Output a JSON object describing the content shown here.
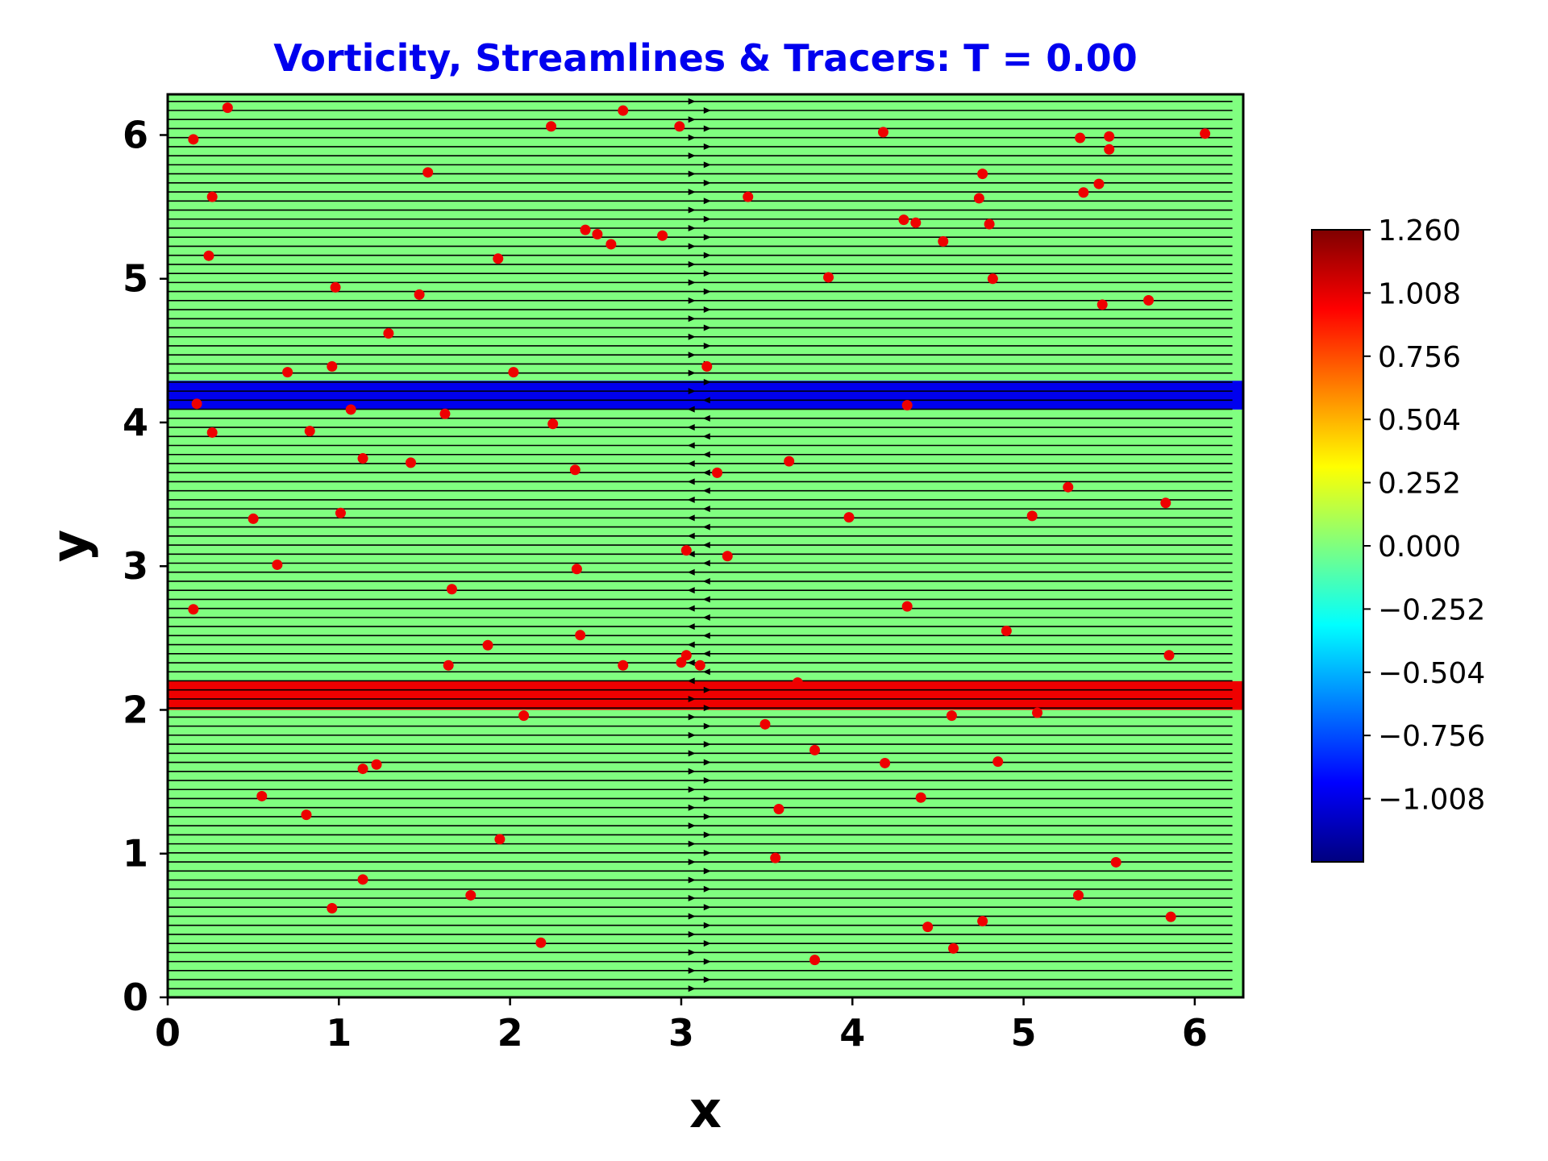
{
  "chart_data": {
    "type": "heatmap",
    "title": "Vorticity, Streamlines & Tracers: T = 0.00",
    "title_color": "#0000ee",
    "xlabel": "x",
    "ylabel": "y",
    "xlim": [
      0,
      6.2832
    ],
    "ylim": [
      0,
      6.2832
    ],
    "x_ticks": [
      0,
      1,
      2,
      3,
      4,
      5,
      6
    ],
    "y_ticks": [
      0,
      1,
      2,
      3,
      4,
      5,
      6
    ],
    "x_tick_labels": [
      "0",
      "1",
      "2",
      "3",
      "4",
      "5",
      "6"
    ],
    "y_tick_labels": [
      "0",
      "1",
      "2",
      "3",
      "4",
      "5",
      "6"
    ],
    "grid": false,
    "colormap": "jet",
    "background_vorticity": 0.0,
    "background_color": "#80ff80",
    "vorticity_bands": [
      {
        "y_min": 4.09,
        "y_max": 4.29,
        "vorticity": -1.13,
        "color": "#0000ee"
      },
      {
        "y_min": 2.0,
        "y_max": 2.2,
        "vorticity": 1.13,
        "color": "#ee0000"
      }
    ],
    "colorbar": {
      "vmin": -1.26,
      "vmax": 1.26,
      "ticks": [
        1.26,
        1.008,
        0.756,
        0.504,
        0.252,
        0.0,
        -0.252,
        -0.504,
        -0.756,
        -1.008
      ],
      "tick_labels": [
        "1.260",
        "1.008",
        "0.756",
        "0.504",
        "0.252",
        "0.000",
        "−0.252",
        "−0.504",
        "−0.756",
        "−1.008"
      ],
      "stops": [
        {
          "value": -1.26,
          "color": "#00007f"
        },
        {
          "value": -0.945,
          "color": "#0000ff"
        },
        {
          "value": -0.315,
          "color": "#00ffff"
        },
        {
          "value": 0.0,
          "color": "#7fff7f"
        },
        {
          "value": 0.315,
          "color": "#ffff00"
        },
        {
          "value": 0.945,
          "color": "#ff0000"
        },
        {
          "value": 1.26,
          "color": "#7f0000"
        }
      ]
    },
    "streamlines": {
      "direction_rule": "right-moving outside 2.15 < y < 4.19, left-moving inside",
      "flip_y_low": 2.15,
      "flip_y_high": 4.19,
      "line_color": "#000000"
    },
    "tracers": {
      "color": "#ee0000",
      "points": [
        [
          0.15,
          5.97
        ],
        [
          0.35,
          6.19
        ],
        [
          0.26,
          5.57
        ],
        [
          0.24,
          5.16
        ],
        [
          0.17,
          4.13
        ],
        [
          0.26,
          3.93
        ],
        [
          0.5,
          3.33
        ],
        [
          0.64,
          3.01
        ],
        [
          0.15,
          2.7
        ],
        [
          0.7,
          4.35
        ],
        [
          0.96,
          4.39
        ],
        [
          0.98,
          4.94
        ],
        [
          1.07,
          4.09
        ],
        [
          0.83,
          3.94
        ],
        [
          1.01,
          3.37
        ],
        [
          1.14,
          3.75
        ],
        [
          1.29,
          4.62
        ],
        [
          1.42,
          3.72
        ],
        [
          1.47,
          4.89
        ],
        [
          1.52,
          5.74
        ],
        [
          1.62,
          4.06
        ],
        [
          1.66,
          2.84
        ],
        [
          1.64,
          2.31
        ],
        [
          1.87,
          2.45
        ],
        [
          1.93,
          5.14
        ],
        [
          2.02,
          4.35
        ],
        [
          2.24,
          6.06
        ],
        [
          2.25,
          3.99
        ],
        [
          2.38,
          3.67
        ],
        [
          2.39,
          2.98
        ],
        [
          2.41,
          2.52
        ],
        [
          2.44,
          5.34
        ],
        [
          2.51,
          5.31
        ],
        [
          2.59,
          5.24
        ],
        [
          2.66,
          6.17
        ],
        [
          2.66,
          2.31
        ],
        [
          2.89,
          5.3
        ],
        [
          2.99,
          6.06
        ],
        [
          3.0,
          2.33
        ],
        [
          3.03,
          2.38
        ],
        [
          3.03,
          3.11
        ],
        [
          3.11,
          2.31
        ],
        [
          3.15,
          4.39
        ],
        [
          3.21,
          3.65
        ],
        [
          3.27,
          3.07
        ],
        [
          3.39,
          5.57
        ],
        [
          3.49,
          1.9
        ],
        [
          3.55,
          0.97
        ],
        [
          3.57,
          1.31
        ],
        [
          3.63,
          3.73
        ],
        [
          3.68,
          2.19
        ],
        [
          3.78,
          1.72
        ],
        [
          3.78,
          0.26
        ],
        [
          3.86,
          5.01
        ],
        [
          3.98,
          3.34
        ],
        [
          4.18,
          6.02
        ],
        [
          4.19,
          1.63
        ],
        [
          4.3,
          5.41
        ],
        [
          4.32,
          4.12
        ],
        [
          4.32,
          2.72
        ],
        [
          4.37,
          5.39
        ],
        [
          4.4,
          1.39
        ],
        [
          4.44,
          0.49
        ],
        [
          4.53,
          5.26
        ],
        [
          4.58,
          1.96
        ],
        [
          4.59,
          0.34
        ],
        [
          4.74,
          5.56
        ],
        [
          4.76,
          5.73
        ],
        [
          4.76,
          0.53
        ],
        [
          4.8,
          5.38
        ],
        [
          4.82,
          5.0
        ],
        [
          4.85,
          1.64
        ],
        [
          4.9,
          2.55
        ],
        [
          5.05,
          3.35
        ],
        [
          5.08,
          1.98
        ],
        [
          5.26,
          3.55
        ],
        [
          5.32,
          0.71
        ],
        [
          5.33,
          5.98
        ],
        [
          5.35,
          5.6
        ],
        [
          5.44,
          5.66
        ],
        [
          5.46,
          4.82
        ],
        [
          5.5,
          5.99
        ],
        [
          5.5,
          5.9
        ],
        [
          5.54,
          0.94
        ],
        [
          5.73,
          4.85
        ],
        [
          5.83,
          3.44
        ],
        [
          5.85,
          2.38
        ],
        [
          5.86,
          0.56
        ],
        [
          6.06,
          6.01
        ],
        [
          0.55,
          1.4
        ],
        [
          0.81,
          1.27
        ],
        [
          0.96,
          0.62
        ],
        [
          1.14,
          1.59
        ],
        [
          1.14,
          0.82
        ],
        [
          1.22,
          1.62
        ],
        [
          1.77,
          0.71
        ],
        [
          1.94,
          1.1
        ],
        [
          2.08,
          1.96
        ],
        [
          2.18,
          0.38
        ]
      ]
    }
  }
}
